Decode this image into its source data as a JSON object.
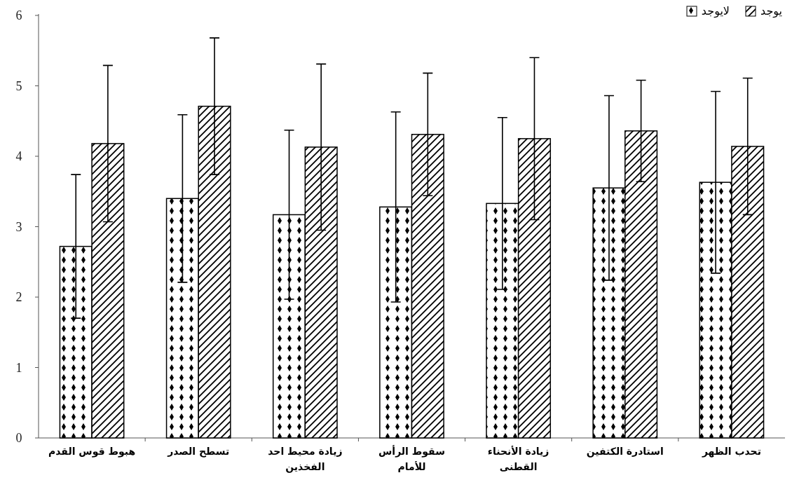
{
  "chart_data": {
    "type": "bar",
    "categories": [
      "هبوط قوس القدم",
      "تسطح الصدر",
      "زيادة محيط احد الفخذين",
      "سقوط الرأس للأمام",
      "زيادة الأنحناء القطنى",
      "استادرة الكتفين",
      "تحدب الظهر"
    ],
    "series": [
      {
        "name": "لايوجد",
        "color": "#000000",
        "values": [
          2.72,
          3.4,
          3.17,
          3.28,
          3.33,
          3.55,
          3.63
        ],
        "errors": [
          1.02,
          1.19,
          1.2,
          1.35,
          1.22,
          1.31,
          1.29
        ]
      },
      {
        "name": "يوجد",
        "color": "#000000",
        "values": [
          4.18,
          4.71,
          4.13,
          4.31,
          4.25,
          4.36,
          4.14
        ],
        "errors": [
          1.11,
          0.97,
          1.18,
          0.87,
          1.15,
          0.72,
          0.97
        ]
      }
    ],
    "ylim": [
      0,
      6
    ],
    "yticks": [
      0,
      1,
      2,
      3,
      4,
      5,
      6
    ],
    "grid": false,
    "legend": "top right"
  }
}
